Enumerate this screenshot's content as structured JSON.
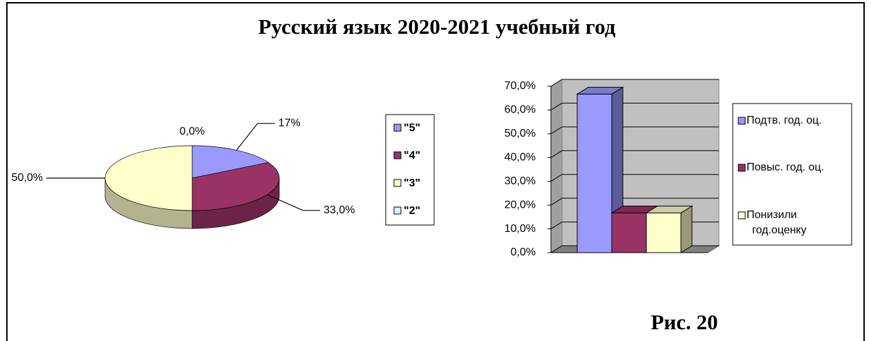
{
  "title": "Русский язык 2020-2021 учебный год",
  "figure_label": "Рис. 20",
  "chart_data": [
    {
      "type": "pie",
      "categories": [
        "\"5\"",
        "\"4\"",
        "\"3\"",
        "\"2\""
      ],
      "values": [
        17,
        33,
        50,
        0
      ],
      "value_labels": [
        "17%",
        "33,0%",
        "50,0%",
        "0,0%"
      ],
      "colors": [
        "#9999ff",
        "#993366",
        "#ffffcc",
        "#ccffff"
      ],
      "legend": "right"
    },
    {
      "type": "bar",
      "categories": [
        "Подтв. год. оц.",
        "Повыс. год. оц.",
        "Понизили год.оценку"
      ],
      "values": [
        66.7,
        16.7,
        16.7
      ],
      "colors": [
        "#9999ff",
        "#993366",
        "#ffffcc"
      ],
      "ylim": [
        0,
        70
      ],
      "yticks": [
        {
          "value": 0,
          "label": "0,0%"
        },
        {
          "value": 10,
          "label": "10,0%"
        },
        {
          "value": 20,
          "label": "20,0%"
        },
        {
          "value": 30,
          "label": "30,0%"
        },
        {
          "value": 40,
          "label": "40,0%"
        },
        {
          "value": 50,
          "label": "50,0%"
        },
        {
          "value": 60,
          "label": "60,0%"
        },
        {
          "value": 70,
          "label": "70,0%"
        }
      ],
      "grid": true,
      "legend": "right"
    }
  ]
}
